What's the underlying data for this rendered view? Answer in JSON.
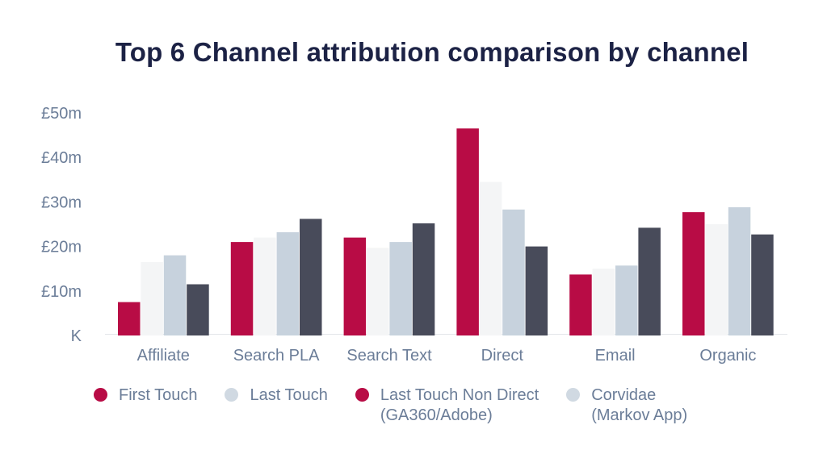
{
  "chart_data": {
    "type": "bar",
    "title": "Top 6 Channel attribution comparison by channel",
    "categories": [
      "Affiliate",
      "Search PLA",
      "Search Text",
      "Direct",
      "Email",
      "Organic"
    ],
    "y_ticks": [
      "K",
      "£10m",
      "£20m",
      "£30m",
      "£40m",
      "£50m"
    ],
    "ylim": [
      0,
      50
    ],
    "series": [
      {
        "name": "First Touch",
        "color": "#b80c45",
        "values": [
          7.5,
          21,
          22,
          46.5,
          13.7,
          27.7
        ]
      },
      {
        "name": "Last Touch",
        "color": "#f4f5f6",
        "values": [
          16.5,
          22,
          19.7,
          34.5,
          15,
          25
        ]
      },
      {
        "name": "Last Touch Non Direct\n(GA360/Adobe)",
        "color": "#c7d2dd",
        "values": [
          18,
          23.2,
          21,
          28.3,
          15.7,
          28.8
        ]
      },
      {
        "name": "Corvidae\n(Markov App)",
        "color": "#484b5a",
        "values": [
          11.5,
          26.2,
          25.2,
          20,
          24.2,
          22.7
        ]
      }
    ],
    "legend": [
      {
        "label": "First Touch",
        "dot_color": "#b80c45"
      },
      {
        "label": "Last Touch",
        "dot_color": "#d0d9e2"
      },
      {
        "label": "Last Touch Non Direct\n(GA360/Adobe)",
        "dot_color": "#b80c45"
      },
      {
        "label": "Corvidae\n(Markov App)",
        "dot_color": "#d0d9e2"
      }
    ],
    "legend_position": "bottom",
    "grid": false
  }
}
